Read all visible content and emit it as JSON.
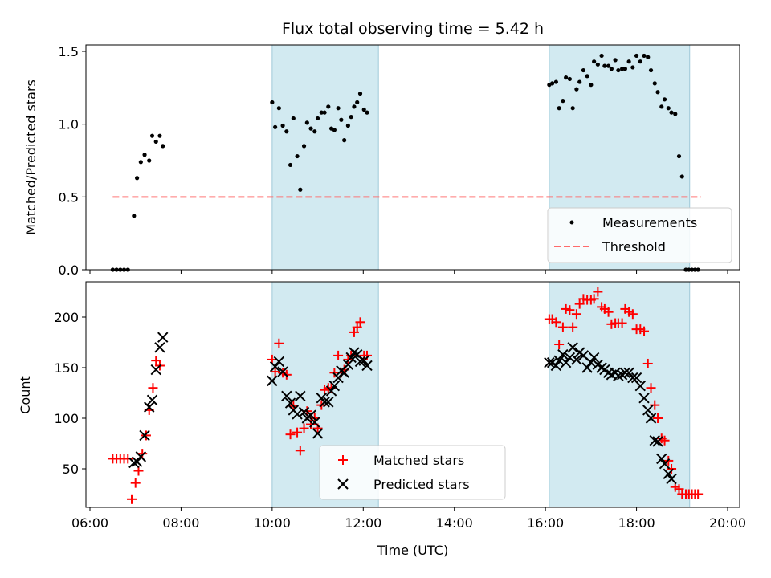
{
  "chart_data": [
    {
      "type": "scatter",
      "title": "Flux total observing time = 5.42 h",
      "xlabel": "",
      "ylabel": "Matched/Predicted stars",
      "xlim": [
        "06:00",
        "20:00"
      ],
      "ylim": [
        0,
        1.55
      ],
      "yticks": [
        "0.0",
        "0.5",
        "1.0",
        "1.5"
      ],
      "shaded_ranges": [
        [
          "10:00",
          "12:20"
        ],
        [
          "16:05",
          "19:10"
        ]
      ],
      "shade_color": "#add8e6",
      "legend": {
        "placement": "lower-right",
        "entries": [
          "Measurements",
          "Threshold"
        ]
      },
      "series": [
        {
          "name": "Measurements",
          "marker": "dot",
          "color": "#000000",
          "points": [
            [
              "06:30",
              0
            ],
            [
              "06:35",
              0
            ],
            [
              "06:40",
              0
            ],
            [
              "06:45",
              0
            ],
            [
              "06:50",
              0
            ],
            [
              "06:58",
              0.37
            ],
            [
              "07:02",
              0.63
            ],
            [
              "07:07",
              0.74
            ],
            [
              "07:12",
              0.79
            ],
            [
              "07:18",
              0.75
            ],
            [
              "07:22",
              0.92
            ],
            [
              "07:27",
              0.88
            ],
            [
              "07:32",
              0.92
            ],
            [
              "07:36",
              0.85
            ],
            [
              "10:00",
              1.15
            ],
            [
              "10:04",
              0.98
            ],
            [
              "10:09",
              1.11
            ],
            [
              "10:14",
              0.99
            ],
            [
              "10:19",
              0.95
            ],
            [
              "10:24",
              0.72
            ],
            [
              "10:28",
              1.04
            ],
            [
              "10:33",
              0.78
            ],
            [
              "10:37",
              0.55
            ],
            [
              "10:42",
              0.85
            ],
            [
              "10:46",
              1.01
            ],
            [
              "10:51",
              0.97
            ],
            [
              "10:56",
              0.95
            ],
            [
              "11:00",
              1.04
            ],
            [
              "11:05",
              1.08
            ],
            [
              "11:09",
              1.08
            ],
            [
              "11:14",
              1.12
            ],
            [
              "11:18",
              0.97
            ],
            [
              "11:22",
              0.96
            ],
            [
              "11:27",
              1.11
            ],
            [
              "11:31",
              1.03
            ],
            [
              "11:35",
              0.89
            ],
            [
              "11:40",
              0.99
            ],
            [
              "11:44",
              1.05
            ],
            [
              "11:48",
              1.12
            ],
            [
              "11:52",
              1.15
            ],
            [
              "11:56",
              1.21
            ],
            [
              "12:01",
              1.1
            ],
            [
              "12:05",
              1.08
            ],
            [
              "16:05",
              1.27
            ],
            [
              "16:09",
              1.28
            ],
            [
              "16:14",
              1.29
            ],
            [
              "16:18",
              1.11
            ],
            [
              "16:23",
              1.16
            ],
            [
              "16:27",
              1.32
            ],
            [
              "16:32",
              1.31
            ],
            [
              "16:36",
              1.11
            ],
            [
              "16:41",
              1.24
            ],
            [
              "16:45",
              1.29
            ],
            [
              "16:50",
              1.37
            ],
            [
              "16:55",
              1.33
            ],
            [
              "17:00",
              1.27
            ],
            [
              "17:04",
              1.43
            ],
            [
              "17:09",
              1.41
            ],
            [
              "17:14",
              1.47
            ],
            [
              "17:18",
              1.4
            ],
            [
              "17:23",
              1.4
            ],
            [
              "17:27",
              1.38
            ],
            [
              "17:32",
              1.44
            ],
            [
              "17:36",
              1.37
            ],
            [
              "17:41",
              1.38
            ],
            [
              "17:45",
              1.38
            ],
            [
              "17:50",
              1.43
            ],
            [
              "17:55",
              1.39
            ],
            [
              "18:00",
              1.47
            ],
            [
              "18:05",
              1.43
            ],
            [
              "18:10",
              1.47
            ],
            [
              "18:15",
              1.46
            ],
            [
              "18:19",
              1.37
            ],
            [
              "18:24",
              1.28
            ],
            [
              "18:28",
              1.22
            ],
            [
              "18:33",
              1.12
            ],
            [
              "18:37",
              1.17
            ],
            [
              "18:42",
              1.11
            ],
            [
              "18:46",
              1.08
            ],
            [
              "18:51",
              1.07
            ],
            [
              "18:56",
              0.78
            ],
            [
              "19:00",
              0.64
            ],
            [
              "19:05",
              0
            ],
            [
              "19:09",
              0
            ],
            [
              "19:13",
              0
            ],
            [
              "19:17",
              0
            ],
            [
              "19:21",
              0
            ]
          ]
        },
        {
          "name": "Threshold",
          "line_style": "dashed",
          "color": "#ff6b6b",
          "x": [
            "06:30",
            "19:25"
          ],
          "y": [
            0.5,
            0.5
          ]
        }
      ]
    },
    {
      "type": "scatter",
      "title": "",
      "xlabel": "Time (UTC)",
      "ylabel": "Count",
      "xlim": [
        "06:00",
        "20:00"
      ],
      "ylim": [
        8,
        237
      ],
      "xticks": [
        "06:00",
        "08:00",
        "10:00",
        "12:00",
        "14:00",
        "16:00",
        "18:00",
        "20:00"
      ],
      "yticks": [
        "50",
        "100",
        "150",
        "200"
      ],
      "shaded_ranges": [
        [
          "10:00",
          "12:20"
        ],
        [
          "16:05",
          "19:10"
        ]
      ],
      "shade_color": "#add8e6",
      "legend": {
        "placement": "lower-center",
        "entries": [
          "Matched stars",
          "Predicted stars"
        ]
      },
      "series": [
        {
          "name": "Matched stars",
          "marker": "plus",
          "color": "#ff0000",
          "points": [
            [
              "06:30",
              60
            ],
            [
              "06:35",
              60
            ],
            [
              "06:40",
              60
            ],
            [
              "06:45",
              60
            ],
            [
              "06:50",
              60
            ],
            [
              "06:55",
              20
            ],
            [
              "07:00",
              36
            ],
            [
              "07:04",
              48
            ],
            [
              "07:09",
              65
            ],
            [
              "07:14",
              83
            ],
            [
              "07:18",
              108
            ],
            [
              "07:23",
              130
            ],
            [
              "07:27",
              157
            ],
            [
              "07:32",
              152
            ],
            [
              "10:00",
              158
            ],
            [
              "10:04",
              146
            ],
            [
              "10:09",
              174
            ],
            [
              "10:14",
              145
            ],
            [
              "10:19",
              143
            ],
            [
              "10:24",
              84
            ],
            [
              "10:28",
              112
            ],
            [
              "10:33",
              86
            ],
            [
              "10:37",
              68
            ],
            [
              "10:42",
              90
            ],
            [
              "10:46",
              107
            ],
            [
              "10:51",
              94
            ],
            [
              "10:56",
              100
            ],
            [
              "11:00",
              90
            ],
            [
              "11:05",
              113
            ],
            [
              "11:09",
              128
            ],
            [
              "11:14",
              130
            ],
            [
              "11:18",
              130
            ],
            [
              "11:22",
              145
            ],
            [
              "11:27",
              162
            ],
            [
              "11:31",
              145
            ],
            [
              "11:35",
              148
            ],
            [
              "11:40",
              158
            ],
            [
              "11:44",
              162
            ],
            [
              "11:48",
              185
            ],
            [
              "11:52",
              190
            ],
            [
              "11:56",
              195
            ],
            [
              "12:01",
              162
            ],
            [
              "12:05",
              162
            ],
            [
              "16:05",
              198
            ],
            [
              "16:09",
              198
            ],
            [
              "16:14",
              195
            ],
            [
              "16:18",
              173
            ],
            [
              "16:23",
              190
            ],
            [
              "16:27",
              208
            ],
            [
              "16:32",
              207
            ],
            [
              "16:36",
              190
            ],
            [
              "16:41",
              203
            ],
            [
              "16:45",
              213
            ],
            [
              "16:50",
              218
            ],
            [
              "16:55",
              217
            ],
            [
              "17:00",
              217
            ],
            [
              "17:04",
              218
            ],
            [
              "17:09",
              225
            ],
            [
              "17:14",
              210
            ],
            [
              "17:18",
              208
            ],
            [
              "17:23",
              205
            ],
            [
              "17:27",
              193
            ],
            [
              "17:32",
              194
            ],
            [
              "17:36",
              194
            ],
            [
              "17:41",
              194
            ],
            [
              "17:45",
              208
            ],
            [
              "17:50",
              205
            ],
            [
              "17:55",
              203
            ],
            [
              "18:00",
              188
            ],
            [
              "18:05",
              188
            ],
            [
              "18:10",
              186
            ],
            [
              "18:15",
              154
            ],
            [
              "18:19",
              130
            ],
            [
              "18:24",
              113
            ],
            [
              "18:28",
              100
            ],
            [
              "18:33",
              80
            ],
            [
              "18:37",
              78
            ],
            [
              "18:42",
              58
            ],
            [
              "18:46",
              50
            ],
            [
              "18:51",
              32
            ],
            [
              "18:56",
              30
            ],
            [
              "19:00",
              25
            ],
            [
              "19:05",
              25
            ],
            [
              "19:09",
              25
            ],
            [
              "19:13",
              25
            ],
            [
              "19:17",
              25
            ],
            [
              "19:21",
              25
            ]
          ]
        },
        {
          "name": "Predicted stars",
          "marker": "x",
          "color": "#000000",
          "points": [
            [
              "06:58",
              56
            ],
            [
              "07:02",
              57
            ],
            [
              "07:07",
              62
            ],
            [
              "07:12",
              83
            ],
            [
              "07:18",
              111
            ],
            [
              "07:22",
              118
            ],
            [
              "07:27",
              148
            ],
            [
              "07:32",
              170
            ],
            [
              "07:36",
              180
            ],
            [
              "10:00",
              137
            ],
            [
              "10:04",
              151
            ],
            [
              "10:09",
              156
            ],
            [
              "10:14",
              146
            ],
            [
              "10:19",
              122
            ],
            [
              "10:24",
              115
            ],
            [
              "10:28",
              108
            ],
            [
              "10:33",
              104
            ],
            [
              "10:37",
              122
            ],
            [
              "10:42",
              106
            ],
            [
              "10:46",
              100
            ],
            [
              "10:51",
              103
            ],
            [
              "10:56",
              96
            ],
            [
              "11:00",
              85
            ],
            [
              "11:05",
              120
            ],
            [
              "11:09",
              116
            ],
            [
              "11:14",
              116
            ],
            [
              "11:18",
              127
            ],
            [
              "11:22",
              132
            ],
            [
              "11:27",
              140
            ],
            [
              "11:31",
              147
            ],
            [
              "11:35",
              145
            ],
            [
              "11:40",
              153
            ],
            [
              "11:44",
              160
            ],
            [
              "11:48",
              165
            ],
            [
              "11:52",
              163
            ],
            [
              "11:56",
              156
            ],
            [
              "12:01",
              157
            ],
            [
              "12:05",
              152
            ],
            [
              "16:05",
              155
            ],
            [
              "16:09",
              155
            ],
            [
              "16:14",
              152
            ],
            [
              "16:18",
              157
            ],
            [
              "16:23",
              163
            ],
            [
              "16:27",
              155
            ],
            [
              "16:32",
              160
            ],
            [
              "16:36",
              170
            ],
            [
              "16:41",
              158
            ],
            [
              "16:45",
              165
            ],
            [
              "16:50",
              162
            ],
            [
              "16:55",
              150
            ],
            [
              "17:00",
              155
            ],
            [
              "17:04",
              160
            ],
            [
              "17:09",
              153
            ],
            [
              "17:14",
              150
            ],
            [
              "17:18",
              148
            ],
            [
              "17:23",
              145
            ],
            [
              "17:27",
              143
            ],
            [
              "17:32",
              145
            ],
            [
              "17:36",
              142
            ],
            [
              "17:41",
              143
            ],
            [
              "17:45",
              145
            ],
            [
              "17:50",
              145
            ],
            [
              "17:55",
              140
            ],
            [
              "18:00",
              140
            ],
            [
              "18:05",
              132
            ],
            [
              "18:10",
              120
            ],
            [
              "18:15",
              108
            ],
            [
              "18:19",
              100
            ],
            [
              "18:24",
              78
            ],
            [
              "18:28",
              77
            ],
            [
              "18:33",
              60
            ],
            [
              "18:37",
              55
            ],
            [
              "18:42",
              45
            ],
            [
              "18:46",
              40
            ]
          ]
        }
      ]
    }
  ]
}
